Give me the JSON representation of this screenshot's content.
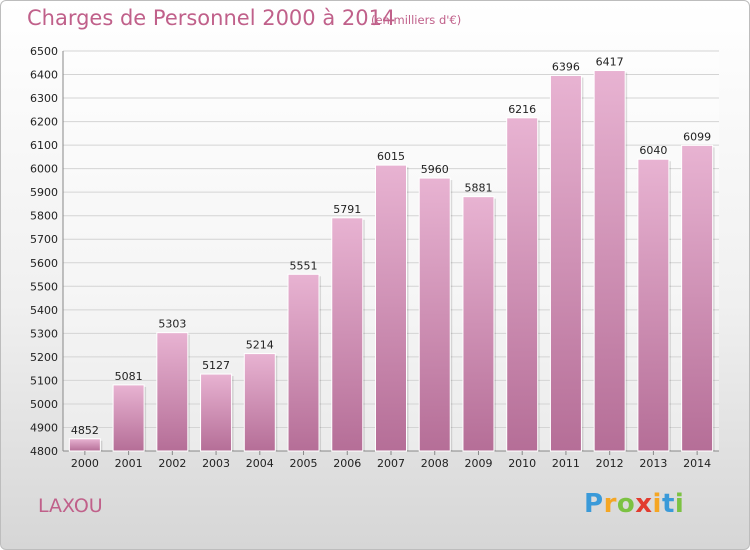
{
  "title": "Charges de Personnel 2000 à 2014",
  "subtitle": "(en milliers d'€)",
  "town": "LAXOU",
  "logo": {
    "letters": [
      "P",
      "r",
      "o",
      "x",
      "i",
      "t",
      "i"
    ],
    "colors": [
      "#3a9ad9",
      "#f5a623",
      "#7cc242",
      "#e23b2e",
      "#f5a623",
      "#3a9ad9",
      "#7cc242"
    ]
  },
  "colors": {
    "bar_light": "#e8b3d2",
    "bar_dark": "#b56e97",
    "grid": "#d4d4d4"
  },
  "chart_data": {
    "type": "bar",
    "title": "Charges de Personnel 2000 à 2014",
    "subtitle": "(en milliers d'€)",
    "categories": [
      "2000",
      "2001",
      "2002",
      "2003",
      "2004",
      "2005",
      "2006",
      "2007",
      "2008",
      "2009",
      "2010",
      "2011",
      "2012",
      "2013",
      "2014"
    ],
    "values": [
      4852,
      5081,
      5303,
      5127,
      5214,
      5551,
      5791,
      6015,
      5960,
      5881,
      6216,
      6396,
      6417,
      6040,
      6099
    ],
    "ylim": [
      4800,
      6500
    ],
    "yticks": [
      4800,
      4900,
      5000,
      5100,
      5200,
      5300,
      5400,
      5500,
      5600,
      5700,
      5800,
      5900,
      6000,
      6100,
      6200,
      6300,
      6400,
      6500
    ],
    "grid": true,
    "legend": "none"
  }
}
